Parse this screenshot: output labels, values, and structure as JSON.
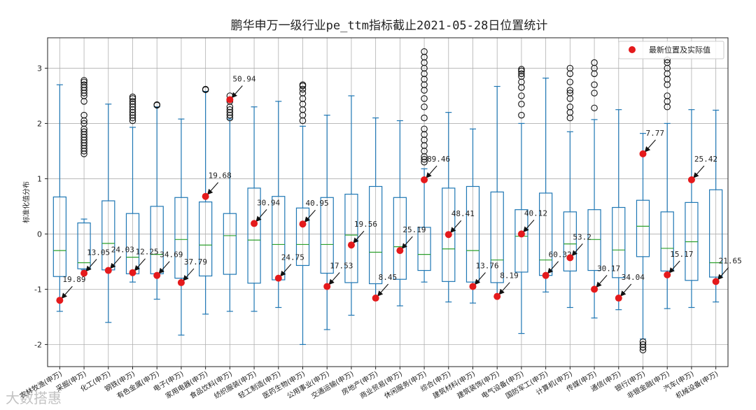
{
  "chart_data": {
    "type": "box",
    "title": "鹏华申万一级行业pe_ttm指标截止2021-05-28日位置统计",
    "ylabel": "标准化值分布",
    "xlabel": "",
    "ylim": [
      -2.4,
      3.55
    ],
    "yticks": [
      -2,
      -1,
      0,
      1,
      2,
      3
    ],
    "grid": true,
    "legend": {
      "label": "最新位置及实际值",
      "position": "top-right"
    },
    "colors": {
      "box": "#1f77b4",
      "median": "#2ca02c",
      "marker": "#e41a1c",
      "grid": "#b0b0b0"
    },
    "categories": [
      "农林牧渔(申万)",
      "采掘(申万)",
      "化工(申万)",
      "钢铁(申万)",
      "有色金属(申万)",
      "电子(申万)",
      "家用电器(申万)",
      "食品饮料(申万)",
      "纺织服装(申万)",
      "轻工制造(申万)",
      "医药生物(申万)",
      "公用事业(申万)",
      "交通运输(申万)",
      "房地产(申万)",
      "商业贸易(申万)",
      "休闲服务(申万)",
      "综合(申万)",
      "建筑材料(申万)",
      "建筑装饰(申万)",
      "电气设备(申万)",
      "国防军工(申万)",
      "计算机(申万)",
      "传媒(申万)",
      "通信(申万)",
      "银行(申万)",
      "非银金融(申万)",
      "汽车(申万)",
      "机械设备(申万)"
    ],
    "boxes": [
      {
        "whislo": -1.4,
        "q1": -0.77,
        "med": -0.3,
        "q3": 0.67,
        "whishi": 2.7,
        "fliers": []
      },
      {
        "whislo": -0.65,
        "q1": -0.63,
        "med": -0.52,
        "q3": 0.2,
        "whishi": 0.27,
        "fliers": [
          1.45,
          1.5,
          1.55,
          1.6,
          1.65,
          1.7,
          1.75,
          1.8,
          1.85,
          1.9,
          2.0,
          2.05,
          2.15,
          2.4,
          2.5,
          2.55,
          2.6,
          2.65,
          2.7,
          2.75,
          2.78
        ]
      },
      {
        "whislo": -1.6,
        "q1": -0.65,
        "med": -0.17,
        "q3": 0.6,
        "whishi": 2.35,
        "fliers": []
      },
      {
        "whislo": -0.87,
        "q1": -0.72,
        "med": -0.42,
        "q3": 0.37,
        "whishi": 1.93,
        "fliers": [
          2.05,
          2.1,
          2.15,
          2.2,
          2.25,
          2.3,
          2.35,
          2.4,
          2.45,
          2.48
        ]
      },
      {
        "whislo": -1.18,
        "q1": -0.72,
        "med": -0.37,
        "q3": 0.5,
        "whishi": 2.3,
        "fliers": [
          2.33,
          2.34
        ]
      },
      {
        "whislo": -1.83,
        "q1": -0.8,
        "med": -0.1,
        "q3": 0.66,
        "whishi": 2.08,
        "fliers": []
      },
      {
        "whislo": -1.45,
        "q1": -0.76,
        "med": -0.2,
        "q3": 0.58,
        "whishi": 2.58,
        "fliers": [
          2.61,
          2.62
        ]
      },
      {
        "whislo": -1.4,
        "q1": -0.73,
        "med": -0.03,
        "q3": 0.37,
        "whishi": 2.08,
        "fliers": [
          2.1,
          2.15,
          2.2,
          2.25,
          2.3,
          2.4,
          2.5
        ]
      },
      {
        "whislo": -1.4,
        "q1": -0.89,
        "med": -0.11,
        "q3": 0.83,
        "whishi": 2.3,
        "fliers": []
      },
      {
        "whislo": -1.33,
        "q1": -0.83,
        "med": -0.19,
        "q3": 0.68,
        "whishi": 2.4,
        "fliers": []
      },
      {
        "whislo": -2.0,
        "q1": -0.57,
        "med": -0.19,
        "q3": 0.47,
        "whishi": 1.95,
        "fliers": [
          2.05,
          2.15,
          2.25,
          2.35,
          2.45,
          2.55,
          2.62,
          2.68,
          2.7
        ]
      },
      {
        "whislo": -1.73,
        "q1": -0.71,
        "med": -0.19,
        "q3": 0.66,
        "whishi": 2.15,
        "fliers": []
      },
      {
        "whislo": -1.47,
        "q1": -0.88,
        "med": -0.02,
        "q3": 0.72,
        "whishi": 2.5,
        "fliers": []
      },
      {
        "whislo": -1.18,
        "q1": -0.9,
        "med": -0.33,
        "q3": 0.86,
        "whishi": 2.1,
        "fliers": []
      },
      {
        "whislo": -1.3,
        "q1": -0.82,
        "med": -0.23,
        "q3": 0.66,
        "whishi": 2.05,
        "fliers": []
      },
      {
        "whislo": -0.87,
        "q1": -0.66,
        "med": -0.37,
        "q3": 0.12,
        "whishi": 1.18,
        "fliers": [
          1.3,
          1.35,
          1.4,
          1.5,
          1.6,
          1.7,
          1.8,
          1.9,
          2.1,
          2.3,
          2.45,
          2.6,
          2.7,
          2.8,
          2.9,
          3.0,
          3.1,
          3.2,
          3.3
        ]
      },
      {
        "whislo": -1.23,
        "q1": -0.86,
        "med": -0.27,
        "q3": 0.83,
        "whishi": 2.2,
        "fliers": []
      },
      {
        "whislo": -1.25,
        "q1": -0.87,
        "med": -0.3,
        "q3": 0.86,
        "whishi": 1.9,
        "fliers": []
      },
      {
        "whislo": -1.12,
        "q1": -0.88,
        "med": -0.47,
        "q3": 0.76,
        "whishi": 2.67,
        "fliers": []
      },
      {
        "whislo": -1.8,
        "q1": -0.69,
        "med": -0.04,
        "q3": 0.44,
        "whishi": 2.0,
        "fliers": [
          2.15,
          2.35,
          2.5,
          2.65,
          2.75,
          2.85,
          2.9,
          2.95,
          2.98
        ]
      },
      {
        "whislo": -1.05,
        "q1": -0.75,
        "med": -0.47,
        "q3": 0.74,
        "whishi": 2.82,
        "fliers": []
      },
      {
        "whislo": -1.33,
        "q1": -0.67,
        "med": -0.18,
        "q3": 0.4,
        "whishi": 1.85,
        "fliers": [
          2.1,
          2.2,
          2.3,
          2.45,
          2.55,
          2.6,
          2.75,
          2.9,
          3.0
        ]
      },
      {
        "whislo": -1.52,
        "q1": -0.66,
        "med": -0.1,
        "q3": 0.44,
        "whishi": 2.07,
        "fliers": [
          2.28,
          2.55,
          2.7,
          2.9,
          3.0,
          3.1
        ]
      },
      {
        "whislo": -1.37,
        "q1": -0.79,
        "med": -0.29,
        "q3": 0.48,
        "whishi": 2.25,
        "fliers": []
      },
      {
        "whislo": -1.9,
        "q1": -0.41,
        "med": 0.14,
        "q3": 0.61,
        "whishi": 1.82,
        "fliers": [
          -1.95,
          -2.0,
          -2.05,
          -2.1
        ]
      },
      {
        "whislo": -1.35,
        "q1": -0.67,
        "med": -0.26,
        "q3": 0.4,
        "whishi": 2.0,
        "fliers": [
          2.3,
          2.4,
          2.5,
          2.7,
          2.8,
          2.9,
          3.0,
          3.1,
          3.15
        ]
      },
      {
        "whislo": -1.33,
        "q1": -0.84,
        "med": -0.14,
        "q3": 0.57,
        "whishi": 2.25,
        "fliers": []
      },
      {
        "whislo": -1.23,
        "q1": -0.78,
        "med": -0.52,
        "q3": 0.8,
        "whishi": 2.24,
        "fliers": []
      }
    ],
    "latest": [
      {
        "y": -1.2,
        "label": "19.89"
      },
      {
        "y": -0.71,
        "label": "13.05"
      },
      {
        "y": -0.66,
        "label": "24.03"
      },
      {
        "y": -0.7,
        "label": "12.25"
      },
      {
        "y": -0.75,
        "label": "34.69"
      },
      {
        "y": -0.88,
        "label": "37.79"
      },
      {
        "y": 0.68,
        "label": "19.68"
      },
      {
        "y": 2.43,
        "label": "50.94"
      },
      {
        "y": 0.19,
        "label": "30.94"
      },
      {
        "y": -0.8,
        "label": "24.75"
      },
      {
        "y": 0.18,
        "label": "40.95"
      },
      {
        "y": -0.95,
        "label": "17.53"
      },
      {
        "y": -0.2,
        "label": "19.56"
      },
      {
        "y": -1.16,
        "label": "8.45"
      },
      {
        "y": -0.3,
        "label": "25.19"
      },
      {
        "y": 0.98,
        "label": "89.46"
      },
      {
        "y": -0.01,
        "label": "48.41"
      },
      {
        "y": -0.95,
        "label": "13.76"
      },
      {
        "y": -1.13,
        "label": "8.19"
      },
      {
        "y": 0.0,
        "label": "40.12"
      },
      {
        "y": -0.75,
        "label": "60.32"
      },
      {
        "y": -0.43,
        "label": "53.2"
      },
      {
        "y": -1.0,
        "label": "30.17"
      },
      {
        "y": -1.16,
        "label": "34.04"
      },
      {
        "y": 1.45,
        "label": "7.77"
      },
      {
        "y": -0.74,
        "label": "15.17"
      },
      {
        "y": 0.98,
        "label": "25.42"
      },
      {
        "y": -0.86,
        "label": "21.65"
      }
    ]
  },
  "watermark": "大数搭惠"
}
